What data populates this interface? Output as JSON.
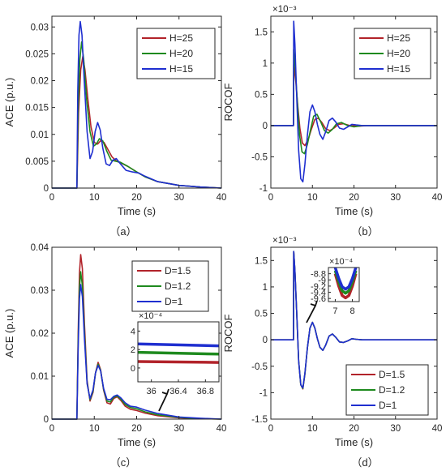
{
  "colors": {
    "series_1": "#b2232a",
    "series_2": "#1e8a1e",
    "series_3": "#1f2fd0",
    "axis": "#262626"
  },
  "chart_data": [
    {
      "id": "a",
      "type": "line",
      "caption": "（a）",
      "xlabel": "Time (s)",
      "ylabel": "ACE (p.u.)",
      "xlim": [
        0,
        40
      ],
      "ylim": [
        0,
        0.032
      ],
      "xticks": [
        0,
        10,
        20,
        30,
        40
      ],
      "xtick_labels": [
        "0",
        "10",
        "20",
        "30",
        "40"
      ],
      "yticks": [
        0,
        0.005,
        0.01,
        0.015,
        0.02,
        0.025,
        0.03
      ],
      "ytick_labels": [
        "0",
        "0.005",
        "0.01",
        "0.015",
        "0.02",
        "0.025",
        "0.03"
      ],
      "legend": "top-right",
      "series": [
        {
          "name": "H=25",
          "x": [
            0,
            5.9,
            6.3,
            6.8,
            7.3,
            7.8,
            8.5,
            9.2,
            10.0,
            10.8,
            11.5,
            12.3,
            13.2,
            14.2,
            15.3,
            16.5,
            18.0,
            20.0,
            22.0,
            25.0,
            30.0,
            35.0,
            40.0
          ],
          "y": [
            0,
            0,
            0.014,
            0.022,
            0.0245,
            0.022,
            0.0165,
            0.0115,
            0.0085,
            0.0082,
            0.0088,
            0.0085,
            0.0072,
            0.0058,
            0.005,
            0.0046,
            0.004,
            0.003,
            0.0021,
            0.0012,
            0.0005,
            0.0002,
            0
          ]
        },
        {
          "name": "H=20",
          "x": [
            0,
            5.9,
            6.2,
            6.6,
            7.0,
            7.5,
            8.2,
            9.0,
            9.8,
            10.5,
            11.2,
            12.0,
            13.0,
            14.0,
            15.0,
            16.2,
            18.0,
            20.0,
            22.0,
            25.0,
            30.0,
            35.0,
            40.0
          ],
          "y": [
            0,
            0,
            0.015,
            0.024,
            0.0272,
            0.024,
            0.0165,
            0.0105,
            0.0078,
            0.0082,
            0.0092,
            0.0088,
            0.0068,
            0.0052,
            0.005,
            0.0048,
            0.004,
            0.003,
            0.0021,
            0.0012,
            0.0005,
            0.0002,
            0
          ]
        },
        {
          "name": "H=15",
          "x": [
            0,
            5.9,
            6.1,
            6.4,
            6.7,
            7.1,
            7.6,
            8.3,
            9.0,
            9.6,
            10.2,
            10.8,
            11.4,
            12.0,
            12.8,
            13.6,
            14.4,
            15.2,
            16.2,
            17.5,
            19.0,
            20.5,
            22.0,
            25.0,
            30.0,
            35.0,
            40.0
          ],
          "y": [
            0,
            0,
            0.018,
            0.0285,
            0.031,
            0.0285,
            0.0205,
            0.0105,
            0.0055,
            0.0068,
            0.0105,
            0.0122,
            0.0108,
            0.0075,
            0.0045,
            0.0042,
            0.0052,
            0.0055,
            0.0045,
            0.0033,
            0.003,
            0.0028,
            0.0022,
            0.0012,
            0.0005,
            0.0002,
            0
          ]
        }
      ]
    },
    {
      "id": "b",
      "type": "line",
      "caption": "（b）",
      "xlabel": "Time (s)",
      "ylabel": "ROCOF",
      "exponent_label": "×10⁻³",
      "xlim": [
        0,
        40
      ],
      "ylim": [
        -1,
        1.75
      ],
      "xticks": [
        0,
        10,
        20,
        30,
        40
      ],
      "xtick_labels": [
        "0",
        "10",
        "20",
        "30",
        "40"
      ],
      "yticks": [
        -1,
        -0.5,
        0,
        0.5,
        1,
        1.5
      ],
      "ytick_labels": [
        "-1",
        "-0.5",
        "0",
        "0.5",
        "1",
        "1.5"
      ],
      "legend": "top-right",
      "series": [
        {
          "name": "H=25",
          "x": [
            0,
            5.45,
            5.5,
            6.0,
            6.5,
            7.0,
            7.6,
            8.2,
            9.0,
            9.8,
            10.6,
            11.4,
            12.3,
            13.2,
            14.2,
            15.2,
            16.3,
            17.5,
            19.0,
            21.0,
            23.0,
            40.0
          ],
          "y": [
            0,
            0,
            0.98,
            0.7,
            0.3,
            -0.05,
            -0.28,
            -0.32,
            -0.22,
            -0.05,
            0.1,
            0.12,
            0.05,
            -0.05,
            -0.08,
            -0.04,
            0.02,
            0.03,
            0.0,
            -0.01,
            0.0,
            0.0
          ]
        },
        {
          "name": "H=20",
          "x": [
            0,
            5.45,
            5.5,
            5.9,
            6.4,
            6.9,
            7.5,
            8.1,
            8.8,
            9.6,
            10.3,
            11.1,
            12.0,
            12.9,
            13.8,
            14.8,
            15.8,
            17.0,
            18.5,
            20.0,
            22.0,
            40.0
          ],
          "y": [
            0,
            0,
            1.22,
            0.9,
            0.35,
            -0.15,
            -0.42,
            -0.45,
            -0.3,
            -0.05,
            0.15,
            0.18,
            0.06,
            -0.08,
            -0.12,
            -0.06,
            0.03,
            0.05,
            0.0,
            -0.02,
            0.0,
            0.0
          ]
        },
        {
          "name": "H=15",
          "x": [
            0,
            5.45,
            5.5,
            5.8,
            6.2,
            6.7,
            7.2,
            7.7,
            8.2,
            8.8,
            9.4,
            10.0,
            10.6,
            11.2,
            11.8,
            12.5,
            13.2,
            14.0,
            14.8,
            15.6,
            16.5,
            17.5,
            18.5,
            19.5,
            20.5,
            22.0,
            40.0
          ],
          "y": [
            0,
            0,
            1.67,
            1.3,
            0.5,
            -0.4,
            -0.85,
            -0.9,
            -0.62,
            -0.15,
            0.22,
            0.33,
            0.22,
            0.02,
            -0.14,
            -0.22,
            -0.1,
            0.08,
            0.12,
            0.06,
            -0.04,
            -0.06,
            -0.02,
            0.02,
            0.01,
            0.0,
            0.0
          ]
        }
      ]
    },
    {
      "id": "c",
      "type": "line",
      "caption": "（c）",
      "xlabel": "Time (s)",
      "ylabel": "ACE (p.u.)",
      "xlim": [
        0,
        40
      ],
      "ylim": [
        0,
        0.04
      ],
      "xticks": [
        0,
        10,
        20,
        30,
        40
      ],
      "xtick_labels": [
        "0",
        "10",
        "20",
        "30",
        "40"
      ],
      "yticks": [
        0,
        0.01,
        0.02,
        0.03,
        0.04
      ],
      "ytick_labels": [
        "0",
        "0.01",
        "0.02",
        "0.03",
        "0.04"
      ],
      "legend": "top-right",
      "series": [
        {
          "name": "D=1.5",
          "x": [
            0,
            5.9,
            6.2,
            6.5,
            6.8,
            7.2,
            7.7,
            8.3,
            9.0,
            9.7,
            10.3,
            10.9,
            11.5,
            12.2,
            13.0,
            13.8,
            14.6,
            15.4,
            16.3,
            17.3,
            18.5,
            20.0,
            22.0,
            25.0,
            30.0,
            35.0,
            40.0
          ],
          "y": [
            0,
            0,
            0.02,
            0.034,
            0.0383,
            0.035,
            0.022,
            0.009,
            0.0042,
            0.0062,
            0.0108,
            0.0132,
            0.0115,
            0.0068,
            0.0038,
            0.0035,
            0.0048,
            0.0052,
            0.0043,
            0.003,
            0.0023,
            0.002,
            0.0014,
            0.0008,
            0.0003,
            0.0001,
            0
          ]
        },
        {
          "name": "D=1.2",
          "x": [
            0,
            5.9,
            6.2,
            6.5,
            6.8,
            7.2,
            7.7,
            8.3,
            9.0,
            9.7,
            10.3,
            10.9,
            11.5,
            12.2,
            13.0,
            13.8,
            14.6,
            15.4,
            16.3,
            17.3,
            18.5,
            20.0,
            22.0,
            25.0,
            30.0,
            35.0,
            40.0
          ],
          "y": [
            0,
            0,
            0.018,
            0.0305,
            0.0343,
            0.031,
            0.02,
            0.0085,
            0.0045,
            0.0065,
            0.0108,
            0.0128,
            0.0113,
            0.007,
            0.0042,
            0.004,
            0.0051,
            0.0054,
            0.0046,
            0.0034,
            0.0027,
            0.0024,
            0.0017,
            0.001,
            0.0004,
            0.0001,
            0
          ]
        },
        {
          "name": "D=1",
          "x": [
            0,
            5.9,
            6.2,
            6.5,
            6.8,
            7.2,
            7.7,
            8.3,
            9.0,
            9.7,
            10.3,
            10.9,
            11.5,
            12.2,
            13.0,
            13.8,
            14.6,
            15.4,
            16.3,
            17.3,
            18.5,
            20.0,
            22.0,
            25.0,
            30.0,
            35.0,
            40.0
          ],
          "y": [
            0,
            0,
            0.0165,
            0.028,
            0.0313,
            0.0285,
            0.0185,
            0.0082,
            0.0048,
            0.0068,
            0.0108,
            0.0125,
            0.0112,
            0.0072,
            0.0046,
            0.0045,
            0.0053,
            0.0056,
            0.0049,
            0.0038,
            0.003,
            0.0028,
            0.0021,
            0.0013,
            0.0005,
            0.0002,
            0
          ]
        }
      ],
      "inset": {
        "exponent_label": "×10⁻⁴",
        "xlim": [
          35.8,
          37.0
        ],
        "ylim": [
          -1.5,
          5
        ],
        "xticks": [
          36,
          36.4,
          36.8
        ],
        "xtick_labels": [
          "36",
          "36.4",
          "36.8"
        ],
        "yticks": [
          0,
          2,
          4
        ],
        "ytick_labels": [
          "0",
          "2",
          "4"
        ],
        "series": [
          {
            "name": "D=1.5",
            "x": [
              35.8,
              37.0
            ],
            "y": [
              0.7,
              0.6
            ]
          },
          {
            "name": "D=1.2",
            "x": [
              35.8,
              37.0
            ],
            "y": [
              1.7,
              1.5
            ]
          },
          {
            "name": "D=1",
            "x": [
              35.8,
              37.0
            ],
            "y": [
              2.6,
              2.4
            ]
          }
        ]
      }
    },
    {
      "id": "d",
      "type": "line",
      "caption": "（d）",
      "xlabel": "Time (s)",
      "ylabel": "ROCOF",
      "exponent_label": "×10⁻³",
      "xlim": [
        0,
        40
      ],
      "ylim": [
        -1.5,
        1.75
      ],
      "xticks": [
        0,
        10,
        20,
        30,
        40
      ],
      "xtick_labels": [
        "0",
        "10",
        "20",
        "30",
        "40"
      ],
      "yticks": [
        -1.5,
        -1,
        -0.5,
        0,
        0.5,
        1,
        1.5
      ],
      "ytick_labels": [
        "-1.5",
        "-1",
        "-0.5",
        "0",
        "0.5",
        "1",
        "1.5"
      ],
      "legend": "bottom-right",
      "series": [
        {
          "name": "D=1.5",
          "x": [
            0,
            5.45,
            5.5,
            5.8,
            6.2,
            6.7,
            7.2,
            7.7,
            8.2,
            8.8,
            9.4,
            10.0,
            10.6,
            11.2,
            11.8,
            12.5,
            13.2,
            14.0,
            14.8,
            15.6,
            16.5,
            17.5,
            18.5,
            19.5,
            20.5,
            22.0,
            40.0
          ],
          "y": [
            0,
            0,
            1.67,
            1.3,
            0.55,
            -0.4,
            -0.85,
            -0.93,
            -0.65,
            -0.15,
            0.22,
            0.33,
            0.22,
            0.02,
            -0.14,
            -0.2,
            -0.1,
            0.07,
            0.11,
            0.05,
            -0.04,
            -0.05,
            -0.02,
            0.02,
            0.01,
            0.0,
            0.0
          ]
        },
        {
          "name": "D=1.2",
          "x": [
            0,
            5.45,
            5.5,
            5.8,
            6.2,
            6.7,
            7.2,
            7.7,
            8.2,
            8.8,
            9.4,
            10.0,
            10.6,
            11.2,
            11.8,
            12.5,
            13.2,
            14.0,
            14.8,
            15.6,
            16.5,
            17.5,
            18.5,
            19.5,
            20.5,
            22.0,
            40.0
          ],
          "y": [
            0,
            0,
            1.67,
            1.3,
            0.55,
            -0.4,
            -0.85,
            -0.92,
            -0.64,
            -0.15,
            0.22,
            0.33,
            0.22,
            0.02,
            -0.14,
            -0.2,
            -0.1,
            0.07,
            0.11,
            0.05,
            -0.04,
            -0.05,
            -0.02,
            0.02,
            0.01,
            0.0,
            0.0
          ]
        },
        {
          "name": "D=1",
          "x": [
            0,
            5.45,
            5.5,
            5.8,
            6.2,
            6.7,
            7.2,
            7.7,
            8.2,
            8.8,
            9.4,
            10.0,
            10.6,
            11.2,
            11.8,
            12.5,
            13.2,
            14.0,
            14.8,
            15.6,
            16.5,
            17.5,
            18.5,
            19.5,
            20.5,
            22.0,
            40.0
          ],
          "y": [
            0,
            0,
            1.67,
            1.3,
            0.55,
            -0.4,
            -0.85,
            -0.91,
            -0.63,
            -0.15,
            0.22,
            0.33,
            0.22,
            0.02,
            -0.14,
            -0.2,
            -0.1,
            0.07,
            0.11,
            0.05,
            -0.04,
            -0.05,
            -0.02,
            0.02,
            0.01,
            0.0,
            0.0
          ]
        }
      ],
      "inset": {
        "exponent_label": "×10⁻⁴",
        "xlim": [
          6.6,
          8.4
        ],
        "ylim": [
          -9.7,
          -8.6
        ],
        "xticks": [
          7,
          8
        ],
        "xtick_labels": [
          "7",
          "8"
        ],
        "yticks": [
          -8.8,
          -9,
          -9.2,
          -9.4,
          -9.6
        ],
        "ytick_labels": [
          "-8.8",
          "-9",
          "-9.2",
          "-9.4",
          "-9.6"
        ],
        "series": [
          {
            "name": "D=1.5",
            "x": [
              7.0,
              7.2,
              7.4,
              7.6,
              7.8,
              8.0,
              8.2
            ],
            "y": [
              -8.8,
              -9.2,
              -9.5,
              -9.58,
              -9.5,
              -9.2,
              -8.8
            ]
          },
          {
            "name": "D=1.2",
            "x": [
              7.0,
              7.2,
              7.4,
              7.6,
              7.8,
              8.0,
              8.2
            ],
            "y": [
              -8.7,
              -9.05,
              -9.35,
              -9.43,
              -9.35,
              -9.05,
              -8.7
            ]
          },
          {
            "name": "D=1",
            "x": [
              7.0,
              7.2,
              7.4,
              7.6,
              7.8,
              8.0,
              8.2
            ],
            "y": [
              -8.6,
              -8.95,
              -9.22,
              -9.3,
              -9.22,
              -8.95,
              -8.6
            ]
          }
        ]
      }
    }
  ]
}
